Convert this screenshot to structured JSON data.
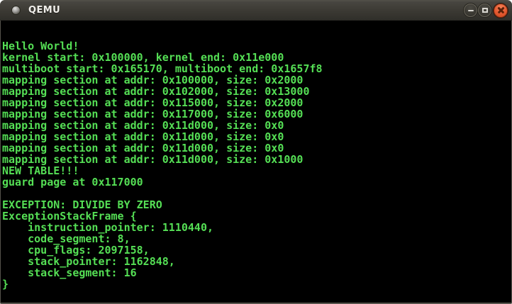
{
  "window": {
    "title": "QEMU",
    "controls": {
      "minimize_label": "minimize",
      "maximize_label": "maximize",
      "close_label": "close"
    }
  },
  "console": {
    "lines": [
      "Hello World!",
      "kernel start: 0x100000, kernel end: 0x11e000",
      "multiboot start: 0x165170, multiboot end: 0x1657f8",
      "mapping section at addr: 0x100000, size: 0x2000",
      "mapping section at addr: 0x102000, size: 0x13000",
      "mapping section at addr: 0x115000, size: 0x2000",
      "mapping section at addr: 0x117000, size: 0x6000",
      "mapping section at addr: 0x11d000, size: 0x0",
      "mapping section at addr: 0x11d000, size: 0x0",
      "mapping section at addr: 0x11d000, size: 0x0",
      "mapping section at addr: 0x11d000, size: 0x1000",
      "NEW TABLE!!!",
      "guard page at 0x117000",
      "",
      "EXCEPTION: DIVIDE BY ZERO",
      "ExceptionStackFrame {",
      "    instruction_pointer: 1110440,",
      "    code_segment: 8,",
      "    cpu_flags: 2097158,",
      "    stack_pointer: 1162848,",
      "    stack_segment: 16",
      "}"
    ]
  },
  "colors": {
    "console-bg": "#000000",
    "text-green": "#55df55",
    "titlebar-top": "#474540",
    "titlebar-bottom": "#302f2a",
    "title-text": "#f0eeea",
    "close-button": "#e2572f",
    "window-border": "#55534b"
  }
}
